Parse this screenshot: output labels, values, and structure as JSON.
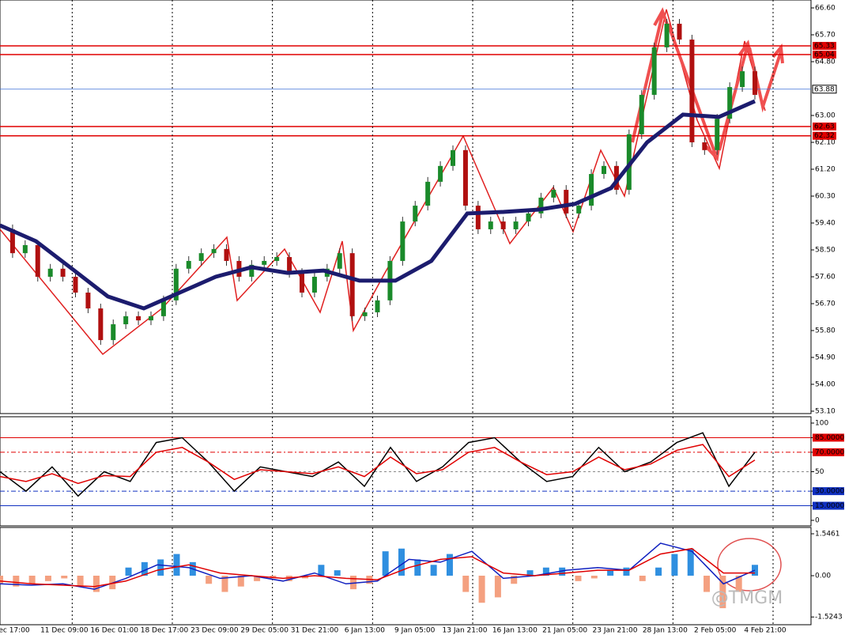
{
  "chart_data": [
    {
      "type": "candle-line",
      "x_labels": [
        "ec 17:00",
        "11 Dec 09:00",
        "16 Dec 01:00",
        "18 Dec 17:00",
        "23 Dec 09:00",
        "29 Dec 05:00",
        "31 Dec 21:00",
        "6 Jan 13:00",
        "9 Jan 05:00",
        "13 Jan 21:00",
        "16 Jan 13:00",
        "21 Jan 05:00",
        "23 Jan 21:00",
        "28 Jan 13:00",
        "2 Feb 05:00",
        "4 Feb 21:00"
      ],
      "ylim": [
        53.02,
        66.865
      ],
      "yticks": [
        {
          "value": 66.6,
          "label": "66.60"
        },
        {
          "value": 65.7,
          "label": "65.70"
        },
        {
          "value": 64.8,
          "label": "64.80"
        },
        {
          "value": 63.0,
          "label": "63.00"
        },
        {
          "value": 62.1,
          "label": "62.10"
        },
        {
          "value": 61.2,
          "label": "61.20"
        },
        {
          "value": 60.3,
          "label": "60.30"
        },
        {
          "value": 59.4,
          "label": "59.40"
        },
        {
          "value": 58.5,
          "label": "58.50"
        },
        {
          "value": 57.6,
          "label": "57.60"
        },
        {
          "value": 56.7,
          "label": "56.70"
        },
        {
          "value": 55.8,
          "label": "55.80"
        },
        {
          "value": 54.9,
          "label": "54.90"
        },
        {
          "value": 54.0,
          "label": "54.00"
        },
        {
          "value": 53.1,
          "label": "53.10"
        }
      ],
      "levels": [
        {
          "value": 65.33,
          "color": "#e00000"
        },
        {
          "value": 65.04,
          "color": "#e00000"
        },
        {
          "value": 63.88,
          "color": "#3a6fd8"
        },
        {
          "value": 62.63,
          "color": "#e00000"
        },
        {
          "value": 62.32,
          "color": "#e00000"
        }
      ],
      "series": [
        {
          "color": "#8b1a1a",
          "values": [
            59.19,
            58.39,
            58.66,
            57.6,
            57.87,
            57.6,
            57.07,
            56.54,
            55.48,
            56.01,
            56.28,
            56.14,
            56.28,
            56.81,
            57.87,
            58.13,
            58.39,
            58.53,
            58.13,
            57.6,
            58.0,
            58.13,
            58.26,
            57.73,
            57.07,
            57.6,
            57.87,
            58.39,
            56.28,
            56.41,
            56.81,
            58.13,
            59.45,
            59.98,
            60.78,
            61.31,
            61.84,
            59.98,
            59.19,
            59.45,
            59.19,
            59.45,
            59.72,
            60.25,
            60.51,
            59.72,
            59.98,
            61.04,
            61.31,
            60.51,
            62.37,
            63.69,
            65.28,
            66.07,
            65.54,
            62.1,
            61.84,
            62.89,
            63.95,
            64.48,
            63.69
          ]
        },
        {
          "color": "#1c1c6e",
          "values": [
            59.32,
            58.79,
            57.87,
            56.94,
            56.54,
            57.07,
            57.6,
            57.92,
            57.73,
            57.81,
            57.47,
            57.47,
            58.13,
            59.72,
            59.77,
            59.85,
            60.04,
            60.57,
            62.1,
            63.03,
            62.95,
            63.48
          ]
        }
      ]
    },
    {
      "type": "line",
      "ylim": [
        0,
        100
      ],
      "yticks": [
        100,
        {
          "value": 85,
          "label": "85.0000"
        },
        {
          "value": 70,
          "label": "70.0000"
        },
        50,
        {
          "value": 30,
          "label": "30.0000"
        },
        {
          "value": 15,
          "label": "15.0000"
        },
        0
      ],
      "series": [
        {
          "color": "#000000",
          "values": [
            50,
            30,
            55,
            25,
            50,
            40,
            80,
            85,
            60,
            30,
            55,
            50,
            45,
            60,
            35,
            75,
            40,
            55,
            80,
            85,
            60,
            40,
            45,
            75,
            50,
            60,
            80,
            90,
            35,
            70
          ]
        },
        {
          "color": "#e00000",
          "values": [
            45,
            40,
            48,
            38,
            46,
            45,
            70,
            75,
            60,
            42,
            52,
            50,
            48,
            55,
            45,
            65,
            48,
            52,
            70,
            75,
            60,
            47,
            50,
            65,
            52,
            58,
            72,
            78,
            45,
            62
          ]
        }
      ]
    },
    {
      "type": "macd",
      "ylim": [
        -1.81,
        1.78
      ],
      "yticks": [
        1.5461,
        {
          "value": 0,
          "label": "0.00"
        },
        -1.5243
      ],
      "watermark": "@TMGM",
      "histogram": {
        "colors": [
          "#2f8fe0",
          "#f4a080"
        ],
        "values": [
          -0.3,
          -0.4,
          -0.3,
          -0.2,
          -0.1,
          -0.4,
          -0.6,
          -0.5,
          0.3,
          0.5,
          0.6,
          0.8,
          0.5,
          -0.3,
          -0.6,
          -0.4,
          -0.2,
          -0.1,
          -0.2,
          -0.1,
          0.4,
          0.2,
          -0.5,
          -0.3,
          0.9,
          1.0,
          0.6,
          0.4,
          0.8,
          -0.6,
          -1.0,
          -0.8,
          -0.3,
          0.2,
          0.3,
          0.3,
          -0.2,
          -0.1,
          0.2,
          0.3,
          -0.2,
          0.3,
          0.8,
          1.0,
          -0.6,
          -1.2,
          -0.6,
          0.4
        ]
      },
      "series": [
        {
          "color": "#1020c0",
          "values": [
            -0.3,
            -0.35,
            -0.3,
            -0.5,
            -0.1,
            0.4,
            0.3,
            -0.1,
            0.0,
            -0.2,
            0.1,
            -0.3,
            -0.2,
            0.6,
            0.5,
            0.9,
            -0.1,
            0.0,
            0.2,
            0.3,
            0.2,
            1.2,
            0.9,
            -0.3,
            0.2
          ]
        },
        {
          "color": "#e00000",
          "values": [
            -0.2,
            -0.3,
            -0.35,
            -0.4,
            -0.2,
            0.2,
            0.4,
            0.1,
            0.0,
            -0.1,
            0.0,
            -0.1,
            -0.15,
            0.3,
            0.6,
            0.7,
            0.1,
            0.0,
            0.1,
            0.2,
            0.2,
            0.8,
            1.0,
            0.1,
            0.1
          ]
        }
      ]
    }
  ]
}
